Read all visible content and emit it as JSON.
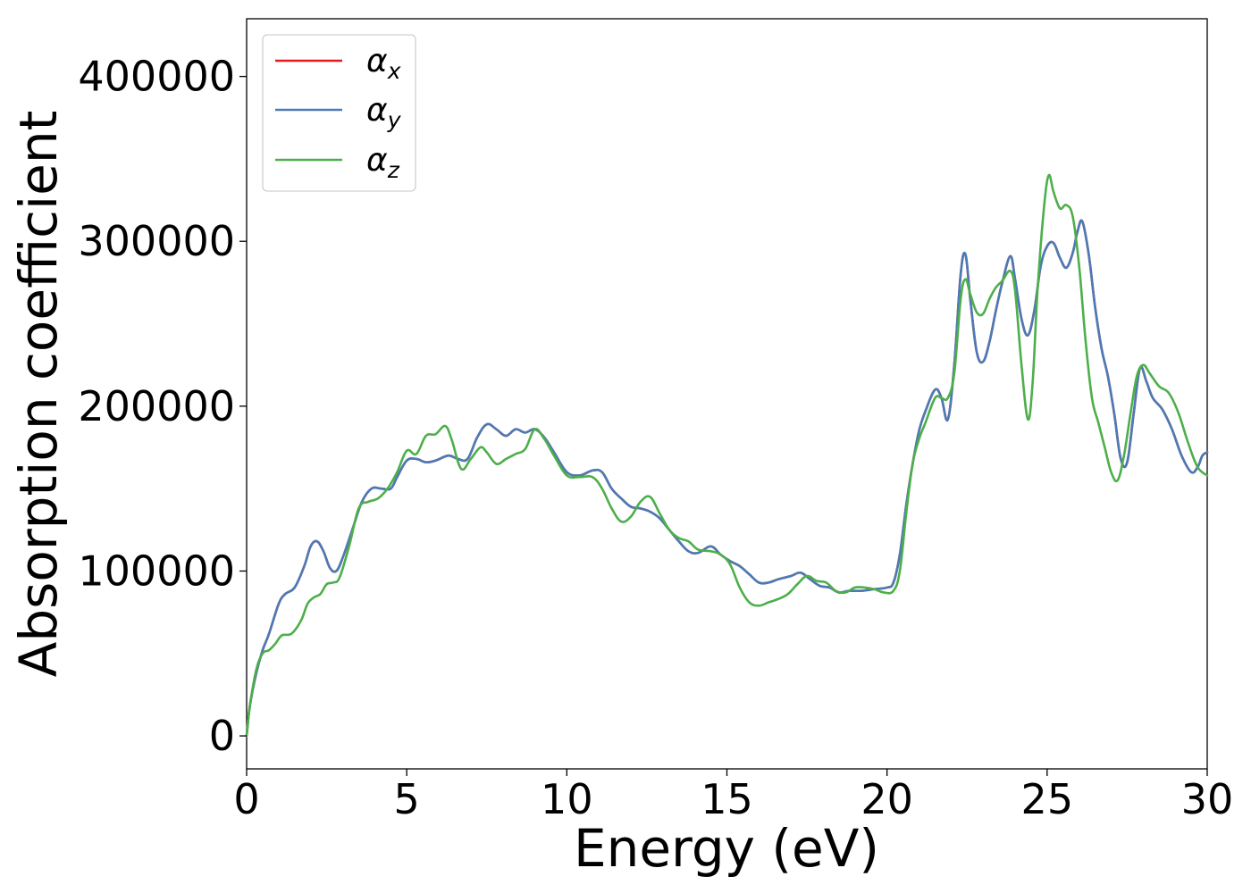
{
  "chart_data": {
    "type": "line",
    "title": "",
    "xlabel": "Energy (eV)",
    "ylabel": "Absorption coefficient",
    "xlim": [
      0,
      30
    ],
    "ylim": [
      -20000,
      435000
    ],
    "xticks": [
      0,
      5,
      10,
      15,
      20,
      25,
      30
    ],
    "xtick_labels": [
      "0",
      "5",
      "10",
      "15",
      "20",
      "25",
      "30"
    ],
    "yticks": [
      0,
      100000,
      200000,
      300000,
      400000
    ],
    "ytick_labels": [
      "0",
      "100000",
      "200000",
      "300000",
      "400000"
    ],
    "grid": false,
    "legend_position": "top-left",
    "series": [
      {
        "name": "αx",
        "legend_base": "α",
        "legend_sub": "x",
        "color": "#e41a1c",
        "x": [
          0,
          0.1,
          0.3,
          0.5,
          0.7,
          1.0,
          1.2,
          1.5,
          1.8,
          2.0,
          2.2,
          2.4,
          2.6,
          2.8,
          3.0,
          3.3,
          3.6,
          3.9,
          4.2,
          4.5,
          4.7,
          5.0,
          5.3,
          5.6,
          5.9,
          6.3,
          6.6,
          6.9,
          7.2,
          7.5,
          7.8,
          8.1,
          8.4,
          8.7,
          9.0,
          9.3,
          9.6,
          10.0,
          10.4,
          10.8,
          11.1,
          11.4,
          11.7,
          12.0,
          12.3,
          12.6,
          12.9,
          13.2,
          13.5,
          13.8,
          14.1,
          14.5,
          14.8,
          15.1,
          15.4,
          15.7,
          16.0,
          16.3,
          16.6,
          17.0,
          17.3,
          17.6,
          17.9,
          18.2,
          18.5,
          18.8,
          19.2,
          19.6,
          20.0,
          20.2,
          20.4,
          20.6,
          20.8,
          21.0,
          21.2,
          21.5,
          21.7,
          21.9,
          22.1,
          22.3,
          22.45,
          22.6,
          22.8,
          23.0,
          23.2,
          23.4,
          23.6,
          23.85,
          24.0,
          24.2,
          24.4,
          24.6,
          24.8,
          25.0,
          25.2,
          25.4,
          25.6,
          25.8,
          25.95,
          26.1,
          26.3,
          26.5,
          26.7,
          26.9,
          27.1,
          27.3,
          27.5,
          27.7,
          27.9,
          28.1,
          28.3,
          28.6,
          28.9,
          29.2,
          29.5,
          29.7,
          29.85,
          30.0
        ],
        "values": [
          0,
          18000,
          38000,
          52000,
          62000,
          80000,
          86000,
          90000,
          103000,
          115000,
          118000,
          112000,
          102000,
          100000,
          108000,
          125000,
          142000,
          150000,
          150000,
          150000,
          157000,
          167000,
          168000,
          166000,
          167000,
          170000,
          168000,
          168000,
          181000,
          189000,
          186000,
          182000,
          186000,
          184000,
          186000,
          181000,
          172000,
          160000,
          158000,
          161000,
          160000,
          150000,
          144000,
          139000,
          138000,
          136000,
          132000,
          125000,
          118000,
          112000,
          111000,
          115000,
          110000,
          106000,
          103000,
          98000,
          93000,
          93000,
          95000,
          97000,
          99000,
          95000,
          91000,
          90000,
          87000,
          88000,
          88000,
          89000,
          90000,
          93000,
          110000,
          140000,
          165000,
          185000,
          197000,
          210000,
          205000,
          192000,
          225000,
          280000,
          292000,
          265000,
          233000,
          227000,
          239000,
          258000,
          275000,
          291000,
          277000,
          253000,
          243000,
          258000,
          285000,
          297000,
          299000,
          290000,
          284000,
          293000,
          306000,
          312000,
          292000,
          260000,
          235000,
          218000,
          195000,
          168000,
          166000,
          195000,
          223000,
          215000,
          205000,
          198000,
          186000,
          170000,
          160000,
          163000,
          170000,
          172000
        ]
      },
      {
        "name": "αy",
        "legend_base": "α",
        "legend_sub": "y",
        "color": "#4a7bb7",
        "x": [
          0,
          0.1,
          0.3,
          0.5,
          0.7,
          1.0,
          1.2,
          1.5,
          1.8,
          2.0,
          2.2,
          2.4,
          2.6,
          2.8,
          3.0,
          3.3,
          3.6,
          3.9,
          4.2,
          4.5,
          4.7,
          5.0,
          5.3,
          5.6,
          5.9,
          6.3,
          6.6,
          6.9,
          7.2,
          7.5,
          7.8,
          8.1,
          8.4,
          8.7,
          9.0,
          9.3,
          9.6,
          10.0,
          10.4,
          10.8,
          11.1,
          11.4,
          11.7,
          12.0,
          12.3,
          12.6,
          12.9,
          13.2,
          13.5,
          13.8,
          14.1,
          14.5,
          14.8,
          15.1,
          15.4,
          15.7,
          16.0,
          16.3,
          16.6,
          17.0,
          17.3,
          17.6,
          17.9,
          18.2,
          18.5,
          18.8,
          19.2,
          19.6,
          20.0,
          20.2,
          20.4,
          20.6,
          20.8,
          21.0,
          21.2,
          21.5,
          21.7,
          21.9,
          22.1,
          22.3,
          22.45,
          22.6,
          22.8,
          23.0,
          23.2,
          23.4,
          23.6,
          23.85,
          24.0,
          24.2,
          24.4,
          24.6,
          24.8,
          25.0,
          25.2,
          25.4,
          25.6,
          25.8,
          25.95,
          26.1,
          26.3,
          26.5,
          26.7,
          26.9,
          27.1,
          27.3,
          27.5,
          27.7,
          27.9,
          28.1,
          28.3,
          28.6,
          28.9,
          29.2,
          29.5,
          29.7,
          29.85,
          30.0
        ],
        "values": [
          0,
          18000,
          38000,
          52000,
          62000,
          80000,
          86000,
          90000,
          103000,
          115000,
          118000,
          112000,
          102000,
          100000,
          108000,
          125000,
          142000,
          150000,
          150000,
          150000,
          157000,
          167000,
          168000,
          166000,
          167000,
          170000,
          168000,
          168000,
          181000,
          189000,
          186000,
          182000,
          186000,
          184000,
          186000,
          181000,
          172000,
          160000,
          158000,
          161000,
          160000,
          150000,
          144000,
          139000,
          138000,
          136000,
          132000,
          125000,
          118000,
          112000,
          111000,
          115000,
          110000,
          106000,
          103000,
          98000,
          93000,
          93000,
          95000,
          97000,
          99000,
          95000,
          91000,
          90000,
          87000,
          88000,
          88000,
          89000,
          90000,
          93000,
          110000,
          140000,
          165000,
          185000,
          197000,
          210000,
          205000,
          192000,
          225000,
          280000,
          292000,
          265000,
          233000,
          227000,
          239000,
          258000,
          275000,
          291000,
          277000,
          253000,
          243000,
          258000,
          285000,
          297000,
          299000,
          290000,
          284000,
          293000,
          306000,
          312000,
          292000,
          260000,
          235000,
          218000,
          195000,
          168000,
          166000,
          195000,
          223000,
          215000,
          205000,
          198000,
          186000,
          170000,
          160000,
          163000,
          170000,
          172000
        ]
      },
      {
        "name": "αz",
        "legend_base": "α",
        "legend_sub": "z",
        "color": "#4daf4a",
        "x": [
          0,
          0.1,
          0.3,
          0.5,
          0.7,
          0.9,
          1.1,
          1.4,
          1.7,
          1.9,
          2.1,
          2.3,
          2.5,
          2.7,
          2.9,
          3.2,
          3.5,
          3.8,
          4.1,
          4.4,
          4.7,
          5.0,
          5.3,
          5.6,
          5.9,
          6.2,
          6.4,
          6.7,
          7.0,
          7.3,
          7.5,
          7.8,
          8.1,
          8.4,
          8.7,
          9.0,
          9.3,
          9.6,
          10.0,
          10.4,
          10.8,
          11.1,
          11.4,
          11.7,
          12.0,
          12.3,
          12.6,
          12.9,
          13.2,
          13.5,
          13.8,
          14.1,
          14.5,
          14.8,
          15.1,
          15.4,
          15.7,
          16.0,
          16.3,
          16.6,
          16.9,
          17.2,
          17.5,
          17.8,
          18.1,
          18.4,
          18.7,
          19.0,
          19.3,
          19.6,
          19.9,
          20.2,
          20.4,
          20.6,
          20.8,
          21.0,
          21.2,
          21.5,
          21.7,
          21.9,
          22.1,
          22.3,
          22.45,
          22.6,
          22.8,
          23.0,
          23.2,
          23.4,
          23.6,
          23.85,
          24.0,
          24.2,
          24.4,
          24.55,
          24.7,
          24.9,
          25.05,
          25.2,
          25.4,
          25.6,
          25.8,
          26.0,
          26.2,
          26.4,
          26.6,
          26.8,
          27.0,
          27.2,
          27.4,
          27.6,
          27.8,
          28.0,
          28.2,
          28.5,
          28.8,
          29.1,
          29.4,
          29.7,
          30.0
        ],
        "values": [
          0,
          18000,
          40000,
          50000,
          52000,
          56000,
          61000,
          62000,
          70000,
          80000,
          84000,
          86000,
          92000,
          93000,
          96000,
          115000,
          138000,
          142000,
          144000,
          150000,
          160000,
          173000,
          171000,
          182000,
          183000,
          188000,
          180000,
          162000,
          168000,
          175000,
          172000,
          165000,
          168000,
          171000,
          174000,
          186000,
          180000,
          170000,
          158000,
          157000,
          157000,
          150000,
          138000,
          130000,
          133000,
          142000,
          145000,
          135000,
          125000,
          120000,
          118000,
          113000,
          112000,
          110000,
          104000,
          90000,
          81000,
          79000,
          81000,
          83000,
          86000,
          92000,
          97000,
          94000,
          93000,
          88000,
          87000,
          90000,
          90000,
          89000,
          87000,
          88000,
          100000,
          135000,
          165000,
          180000,
          190000,
          205000,
          205000,
          205000,
          220000,
          265000,
          277000,
          268000,
          257000,
          256000,
          265000,
          272000,
          276000,
          282000,
          270000,
          225000,
          192000,
          215000,
          270000,
          320000,
          340000,
          330000,
          320000,
          322000,
          315000,
          285000,
          240000,
          205000,
          190000,
          175000,
          160000,
          155000,
          170000,
          195000,
          218000,
          225000,
          220000,
          212000,
          208000,
          196000,
          178000,
          163000,
          158000
        ]
      }
    ]
  }
}
